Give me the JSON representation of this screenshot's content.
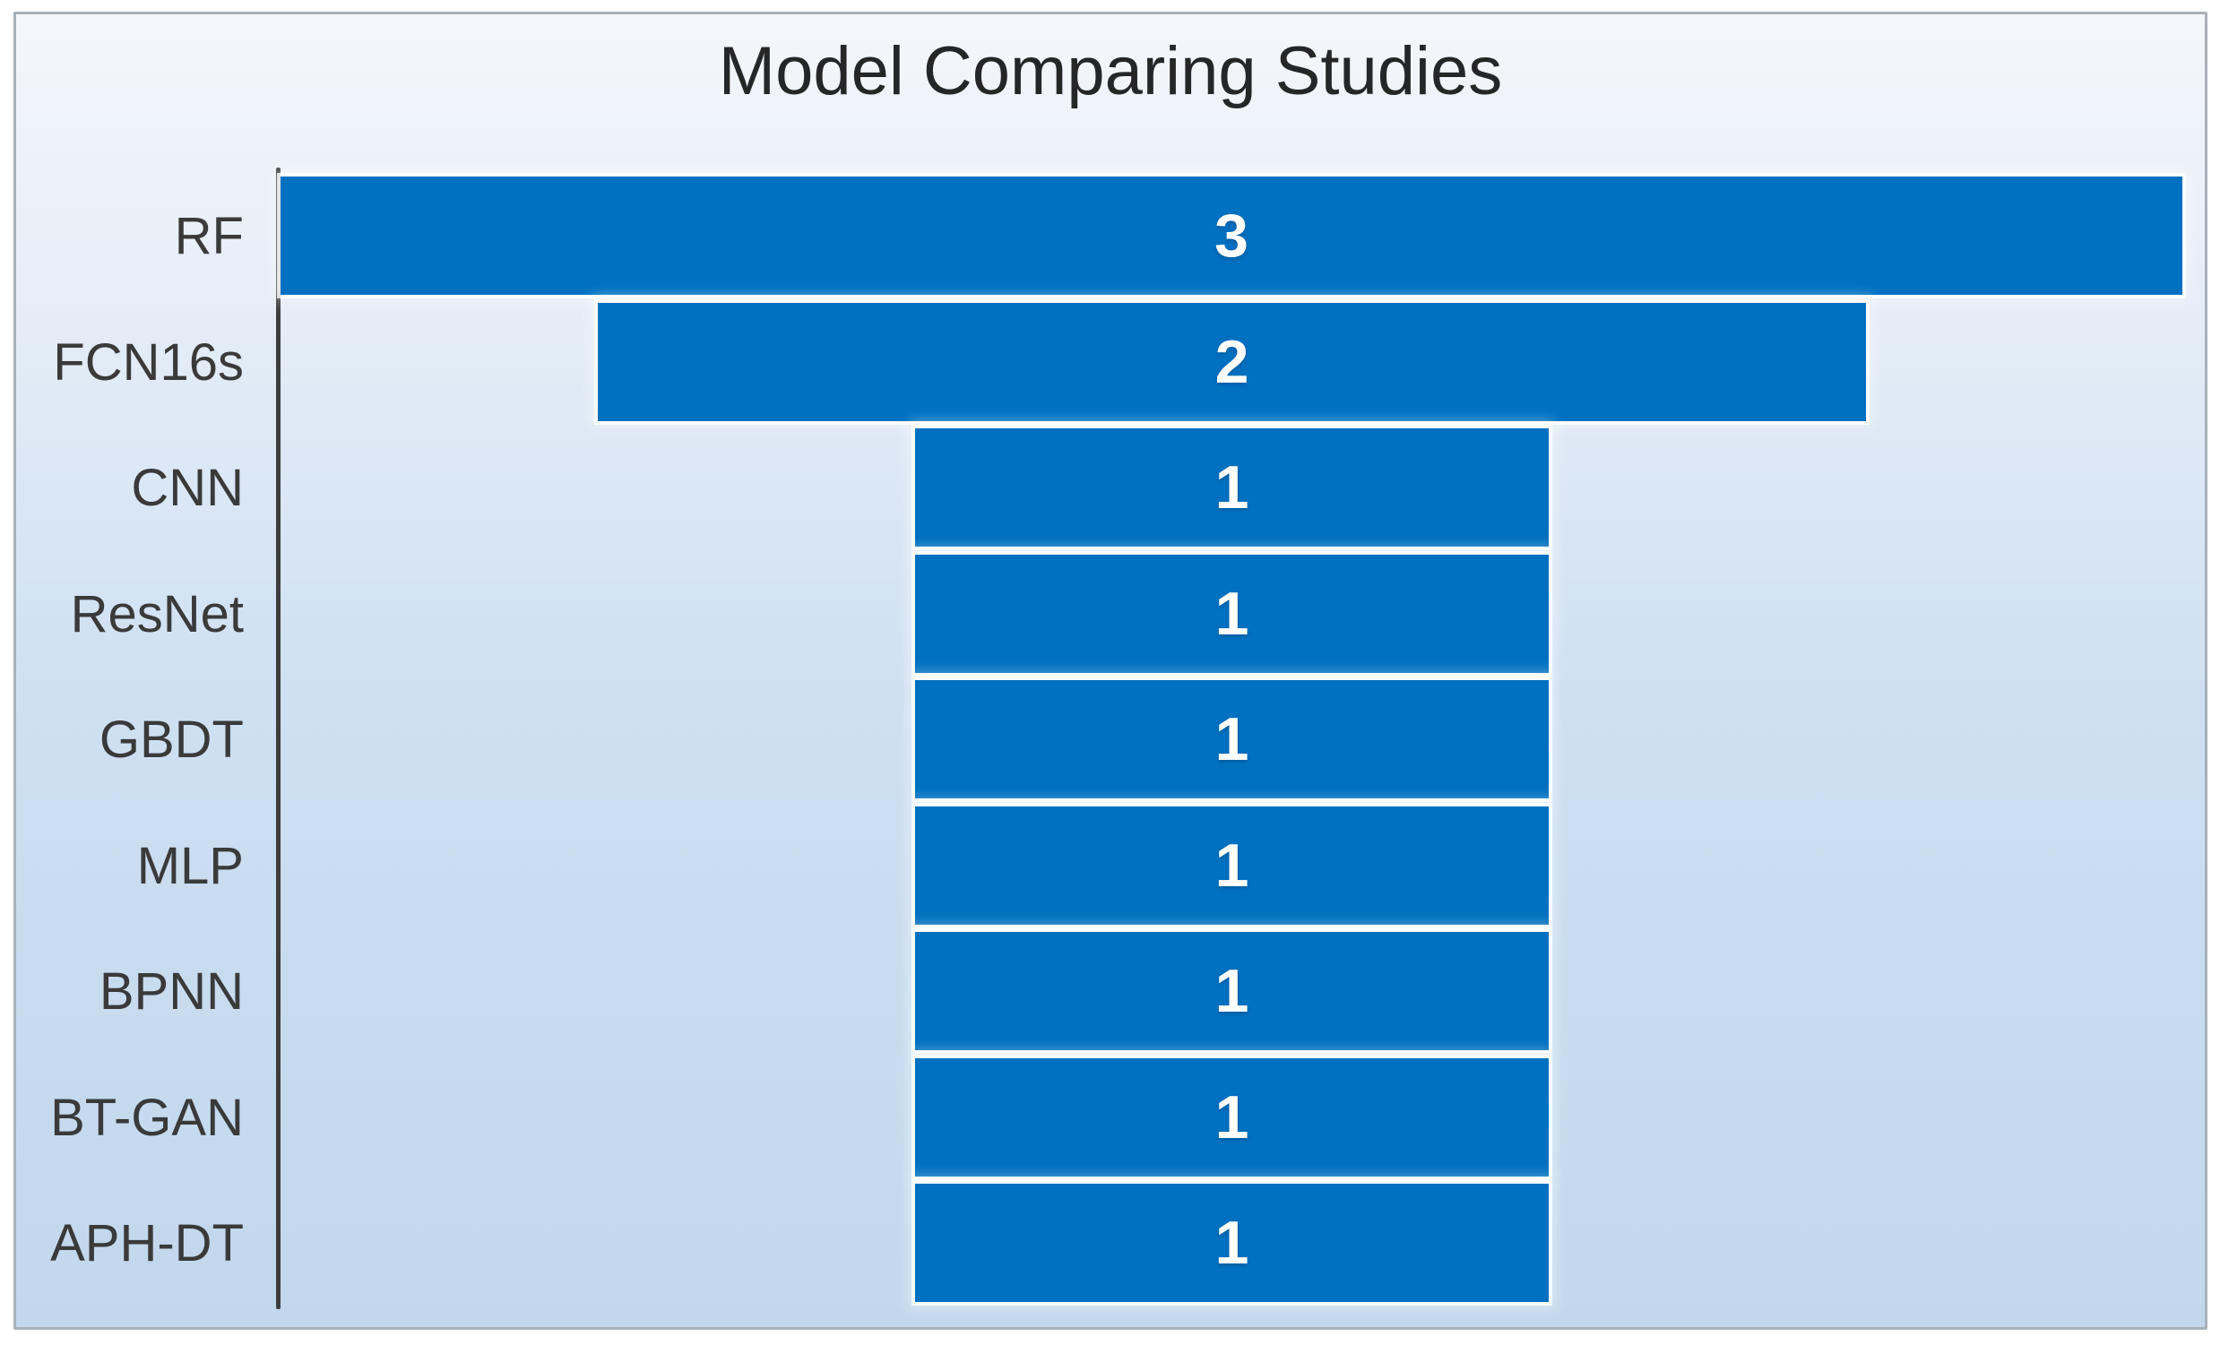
{
  "chart_data": {
    "type": "bar",
    "variant": "funnel-centered-horizontal",
    "title": "Model Comparing Studies",
    "categories": [
      "RF",
      "FCN16s",
      "CNN",
      "ResNet",
      "GBDT",
      "MLP",
      "BPNN",
      "BT-GAN",
      "APH-DT"
    ],
    "values": [
      3,
      2,
      1,
      1,
      1,
      1,
      1,
      1,
      1
    ],
    "value_labels": [
      "3",
      "2",
      "1",
      "1",
      "1",
      "1",
      "1",
      "1",
      "1"
    ],
    "max_value": 3,
    "xlabel": "",
    "ylabel": "",
    "grid": false,
    "legend": false,
    "value_axis_visible": false,
    "bars_centered": true
  },
  "colors": {
    "bar_fill": "#0070C0",
    "bar_value_text": "#FFFFFF",
    "title_text": "#262626",
    "category_text": "#3A3A3A",
    "axis_line": "#3D3D3D",
    "panel_border": "#A9B0BA",
    "background_top": "#F4F7FB",
    "background_bottom": "#C2D7EC",
    "outer_margin": "#FFFFFF"
  }
}
